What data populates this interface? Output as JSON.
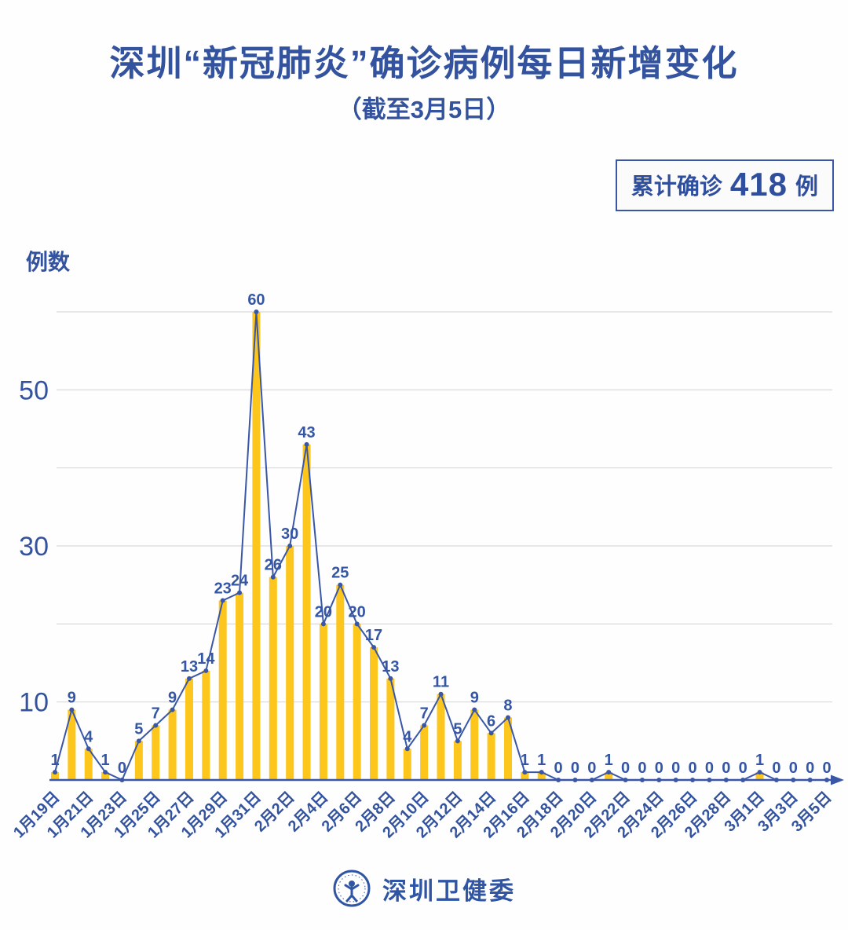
{
  "header": {
    "title": "深圳“新冠肺炎”确诊病例每日新增变化",
    "subtitle": "（截至3月5日）"
  },
  "summary_badge": {
    "prefix": "累计确诊",
    "number": "418",
    "suffix": "例"
  },
  "chart_data": {
    "type": "bar",
    "subtype": "bar-with-line-and-point-labels",
    "title": "深圳“新冠肺炎”确诊病例每日新增变化",
    "subtitle": "（截至3月5日）",
    "ylabel": "例数",
    "xlabel": "",
    "ylim": [
      0,
      60
    ],
    "grid": "horizontal",
    "gridline_values": [
      10,
      20,
      30,
      40,
      50,
      60
    ],
    "ytick_values": [
      10,
      30,
      50
    ],
    "x_label_every": 2,
    "categories": [
      "1月19日",
      "1月20日",
      "1月21日",
      "1月22日",
      "1月23日",
      "1月24日",
      "1月25日",
      "1月26日",
      "1月27日",
      "1月28日",
      "1月29日",
      "1月30日",
      "1月31日",
      "2月1日",
      "2月2日",
      "2月3日",
      "2月4日",
      "2月5日",
      "2月6日",
      "2月7日",
      "2月8日",
      "2月9日",
      "2月10日",
      "2月11日",
      "2月12日",
      "2月13日",
      "2月14日",
      "2月15日",
      "2月16日",
      "2月17日",
      "2月18日",
      "2月19日",
      "2月20日",
      "2月21日",
      "2月22日",
      "2月23日",
      "2月24日",
      "2月25日",
      "2月26日",
      "2月27日",
      "2月28日",
      "2月29日",
      "3月1日",
      "3月2日",
      "3月3日",
      "3月4日",
      "3月5日"
    ],
    "values": [
      1,
      9,
      4,
      1,
      0,
      5,
      7,
      9,
      13,
      14,
      23,
      24,
      60,
      26,
      30,
      43,
      20,
      25,
      20,
      17,
      13,
      4,
      7,
      11,
      5,
      9,
      6,
      8,
      1,
      1,
      0,
      0,
      0,
      1,
      0,
      0,
      0,
      0,
      0,
      0,
      0,
      0,
      1,
      0,
      0,
      0,
      0
    ],
    "colors": {
      "bar": "#fcc61d",
      "line": "#3a57a7",
      "point": "#3a57a7",
      "point_label": "#3456a4",
      "axis": "#3a57a7",
      "tick_label": "#33539e",
      "gridline": "#d9d9d9"
    }
  },
  "footer": {
    "source_name": "深圳卫健委",
    "logo_icon": "person-emblem-icon"
  }
}
